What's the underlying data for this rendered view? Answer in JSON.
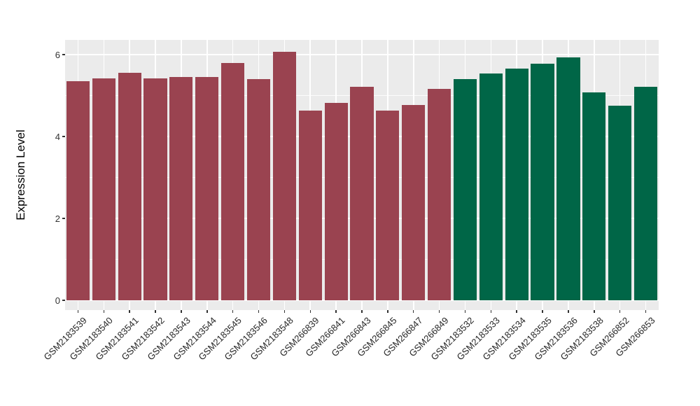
{
  "chart_data": {
    "type": "bar",
    "title": "",
    "xlabel": "",
    "ylabel": "Expression Level",
    "ylim": [
      -0.3,
      6.35
    ],
    "yticks": [
      0,
      2,
      4,
      6
    ],
    "ytick_labels": [
      "0",
      "2",
      "4",
      "6"
    ],
    "yminor": [
      1,
      3,
      5
    ],
    "grid": "major and minor white gridlines on gray panel, vertical major gridlines at category centers",
    "legend_position": "none",
    "bar_width_fraction": 0.9,
    "categories": [
      "GSM2183539",
      "GSM2183540",
      "GSM2183541",
      "GSM2183542",
      "GSM2183543",
      "GSM2183544",
      "GSM2183545",
      "GSM2183546",
      "GSM2183548",
      "GSM266839",
      "GSM266841",
      "GSM266843",
      "GSM266845",
      "GSM266847",
      "GSM266849",
      "GSM2183532",
      "GSM2183533",
      "GSM2183534",
      "GSM2183535",
      "GSM2183536",
      "GSM2183538",
      "GSM266852",
      "GSM266853"
    ],
    "values": [
      5.35,
      5.42,
      5.56,
      5.42,
      5.46,
      5.46,
      5.79,
      5.41,
      6.07,
      4.63,
      4.82,
      5.22,
      4.63,
      4.77,
      5.17,
      5.41,
      5.54,
      5.66,
      5.77,
      5.93,
      5.07,
      4.75,
      5.21
    ],
    "bar_colors": [
      "#9A4350",
      "#9A4350",
      "#9A4350",
      "#9A4350",
      "#9A4350",
      "#9A4350",
      "#9A4350",
      "#9A4350",
      "#9A4350",
      "#9A4350",
      "#9A4350",
      "#9A4350",
      "#9A4350",
      "#9A4350",
      "#9A4350",
      "#006647",
      "#006647",
      "#006647",
      "#006647",
      "#006647",
      "#006647",
      "#006647",
      "#006647"
    ]
  },
  "colors": {
    "group_red": "#9A4350",
    "group_green": "#006647",
    "panel_background": "#EBEBEB",
    "gridline": "#FFFFFF",
    "tick_mark": "#333333",
    "axis_text": "#333333",
    "figure_background": "#FFFFFF"
  }
}
